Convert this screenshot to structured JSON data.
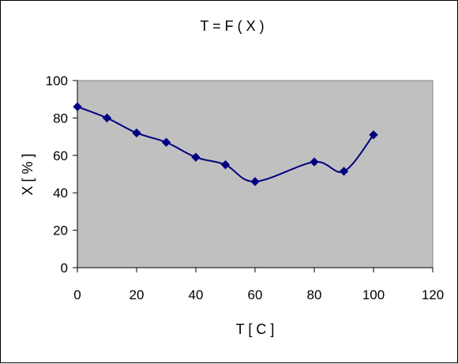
{
  "chart_data": {
    "type": "line",
    "title": "T = F ( X )",
    "xlabel": "T [ C ]",
    "ylabel": "X [ % ]",
    "xlim": [
      0,
      120
    ],
    "ylim": [
      0,
      100
    ],
    "xticks": [
      0,
      20,
      40,
      60,
      80,
      100,
      120
    ],
    "yticks": [
      0,
      20,
      40,
      60,
      80,
      100
    ],
    "grid": false,
    "legend": "none",
    "smoothed": true,
    "plot_background": "#C0C0C0",
    "series": [
      {
        "color": "#000080",
        "marker": "diamond",
        "x": [
          0,
          10,
          20,
          30,
          40,
          50,
          60,
          80,
          90,
          100
        ],
        "y": [
          86,
          80,
          72,
          67,
          59,
          55,
          46,
          56.5,
          51.5,
          71
        ]
      }
    ]
  }
}
